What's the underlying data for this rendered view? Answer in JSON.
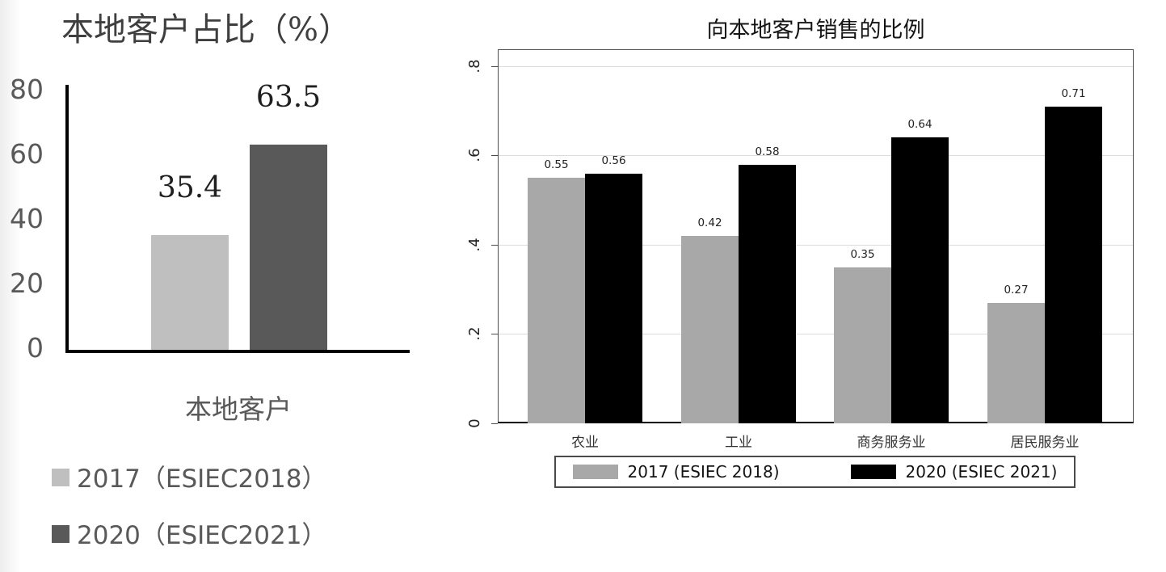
{
  "page": {
    "background": "#ffffff"
  },
  "left_chart": {
    "title": "本地客户占比（%）",
    "xlabel": "本地客户",
    "ytick_labels": [
      "0",
      "20",
      "40",
      "60",
      "80"
    ],
    "legend": [
      {
        "label": "2017（ESIEC2018）",
        "color": "#bfbfbf"
      },
      {
        "label": "2020（ESIEC2021）",
        "color": "#595959"
      }
    ]
  },
  "right_chart": {
    "title": "向本地客户销售的比例",
    "ytick_labels": [
      "0",
      ".2",
      ".4",
      ".6",
      ".8"
    ],
    "legend": [
      {
        "label": "2017 (ESIEC 2018)",
        "color": "#a8a8a8"
      },
      {
        "label": "2020 (ESIEC 2021)",
        "color": "#000000"
      }
    ]
  },
  "chart_data": [
    {
      "type": "bar",
      "title": "本地客户占比（%）",
      "xlabel": "本地客户",
      "categories": [
        "本地客户"
      ],
      "series": [
        {
          "name": "2017（ESIEC2018）",
          "values": [
            35.4
          ],
          "color": "#bfbfbf"
        },
        {
          "name": "2020（ESIEC2021）",
          "values": [
            63.5
          ],
          "color": "#595959"
        }
      ],
      "yticks": [
        0,
        20,
        40,
        60,
        80
      ],
      "ytick_labels": [
        "0",
        "20",
        "40",
        "60",
        "80"
      ],
      "ylim": [
        0,
        80
      ],
      "grid": false,
      "legend_position": "bottom-left",
      "data_labels": true
    },
    {
      "type": "bar",
      "title": "向本地客户销售的比例",
      "xlabel": "",
      "ylabel": "",
      "categories": [
        "农业",
        "工业",
        "商务服务业",
        "居民服务业"
      ],
      "series": [
        {
          "name": "2017 (ESIEC 2018)",
          "values": [
            0.55,
            0.42,
            0.35,
            0.27
          ],
          "color": "#a8a8a8"
        },
        {
          "name": "2020 (ESIEC 2021)",
          "values": [
            0.56,
            0.58,
            0.64,
            0.71
          ],
          "color": "#000000"
        }
      ],
      "yticks": [
        0,
        0.2,
        0.4,
        0.6,
        0.8
      ],
      "ytick_labels": [
        "0",
        ".2",
        ".4",
        ".6",
        ".8"
      ],
      "ylim": [
        0,
        0.8
      ],
      "grid": true,
      "gridline_color": "#dcdcdc",
      "legend_position": "bottom",
      "data_labels": true
    }
  ]
}
